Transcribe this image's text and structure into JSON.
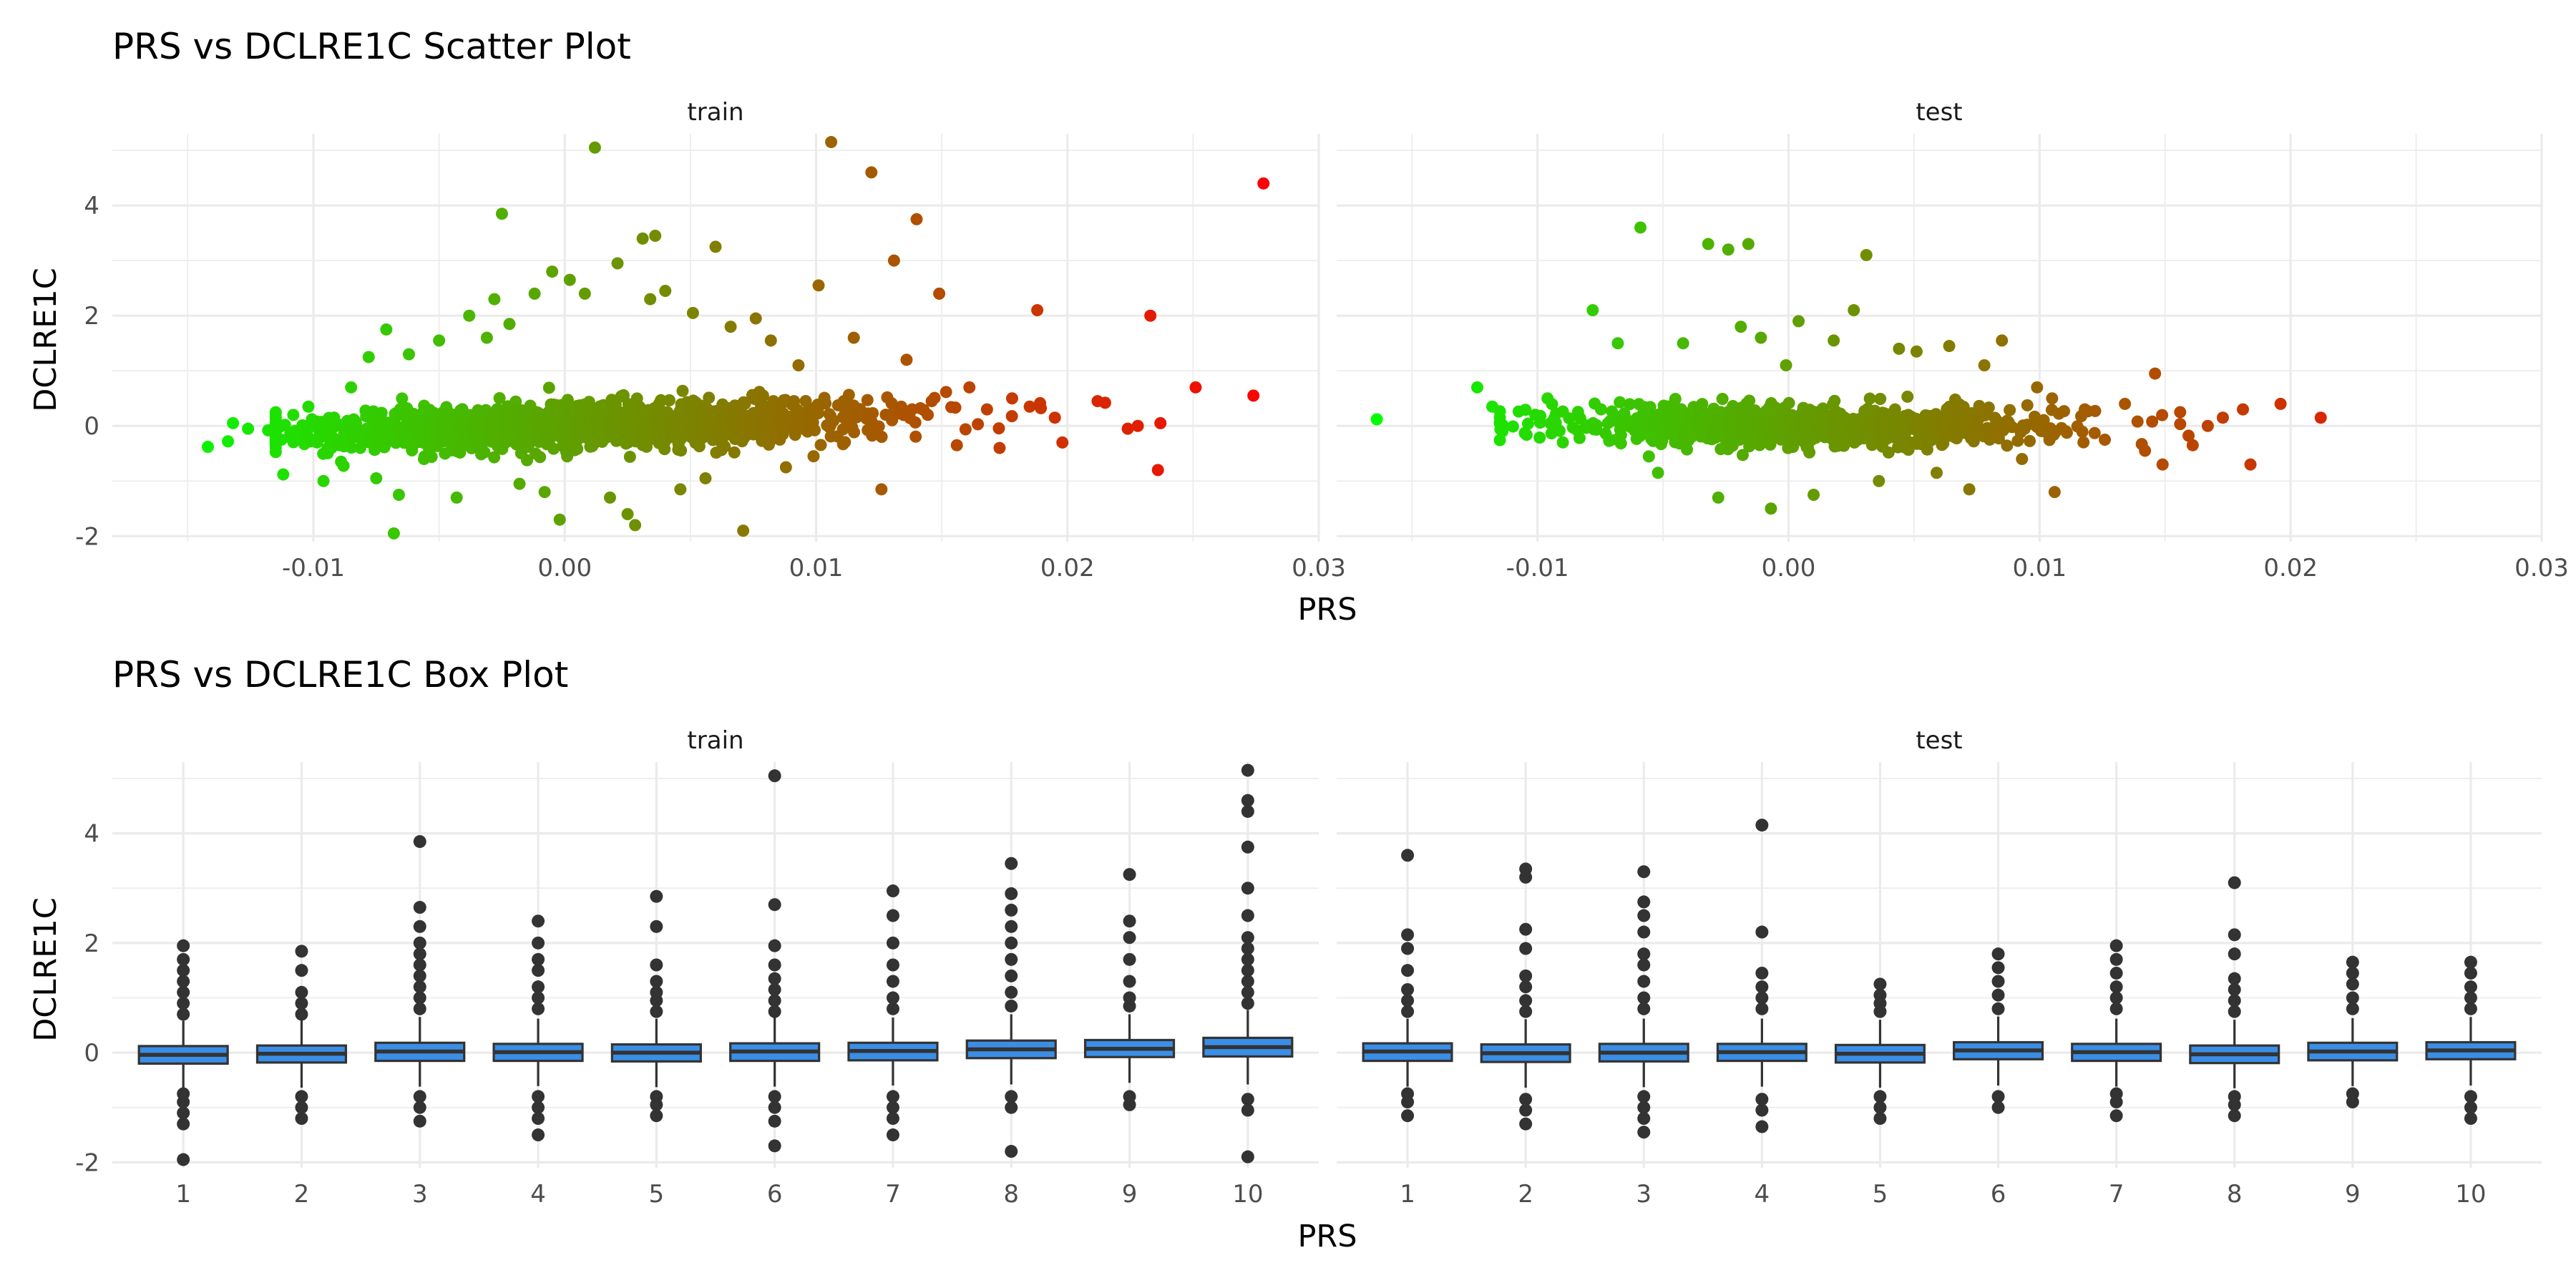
{
  "chart_data": [
    {
      "type": "scatter",
      "title": "PRS vs DCLRE1C Scatter Plot",
      "xlabel": "PRS",
      "ylabel": "DCLRE1C",
      "xlim": [
        -0.018,
        0.03
      ],
      "ylim": [
        -2.1,
        5.3
      ],
      "x_ticks": [
        -0.01,
        0.0,
        0.01,
        0.02,
        0.03
      ],
      "x_tick_labels": [
        "-0.01",
        "0.00",
        "0.01",
        "0.02",
        "0.03"
      ],
      "y_ticks": [
        -2,
        0,
        2,
        4
      ],
      "y_tick_labels": [
        "-2",
        "0",
        "2",
        "4"
      ],
      "grid": true,
      "color_scale": {
        "low": "#00ff00",
        "high": "#ff0000",
        "mapped_to": "PRS"
      },
      "facets": [
        {
          "label": "train",
          "points": [
            [
              -0.0142,
              -0.38
            ],
            [
              -0.0134,
              -0.28
            ],
            [
              -0.0132,
              0.05
            ],
            [
              -0.0126,
              -0.05
            ],
            [
              -0.0118,
              -0.08
            ],
            [
              -0.0112,
              -0.88
            ],
            [
              -0.0108,
              0.2
            ],
            [
              -0.0102,
              0.35
            ],
            [
              -0.0096,
              -1.0
            ],
            [
              -0.0089,
              -0.65
            ],
            [
              -0.0085,
              0.7
            ],
            [
              -0.0078,
              1.25
            ],
            [
              -0.0075,
              -0.95
            ],
            [
              -0.0071,
              1.75
            ],
            [
              -0.0068,
              -1.95
            ],
            [
              -0.0066,
              -1.25
            ],
            [
              -0.0062,
              1.3
            ],
            [
              -0.0056,
              -0.6
            ],
            [
              -0.005,
              1.55
            ],
            [
              -0.0043,
              -1.3
            ],
            [
              -0.0038,
              2.0
            ],
            [
              -0.0031,
              1.6
            ],
            [
              -0.0028,
              2.3
            ],
            [
              -0.0025,
              3.85
            ],
            [
              -0.0022,
              1.85
            ],
            [
              -0.0018,
              -1.05
            ],
            [
              -0.0012,
              2.4
            ],
            [
              -0.0008,
              -1.2
            ],
            [
              -0.0005,
              2.8
            ],
            [
              -0.0002,
              -1.7
            ],
            [
              0.0002,
              2.65
            ],
            [
              0.0008,
              2.4
            ],
            [
              0.0012,
              5.05
            ],
            [
              0.0018,
              -1.3
            ],
            [
              0.0021,
              2.95
            ],
            [
              0.0025,
              -1.6
            ],
            [
              0.0028,
              -1.8
            ],
            [
              0.0031,
              3.4
            ],
            [
              0.0034,
              2.3
            ],
            [
              0.0036,
              3.45
            ],
            [
              0.004,
              2.45
            ],
            [
              0.0046,
              -1.15
            ],
            [
              0.0051,
              2.05
            ],
            [
              0.0056,
              -0.95
            ],
            [
              0.006,
              3.25
            ],
            [
              0.0066,
              1.8
            ],
            [
              0.0071,
              -1.9
            ],
            [
              0.0076,
              1.95
            ],
            [
              0.0082,
              1.55
            ],
            [
              0.0088,
              -0.75
            ],
            [
              0.0093,
              1.1
            ],
            [
              0.0099,
              -0.55
            ],
            [
              0.0101,
              2.55
            ],
            [
              0.0106,
              5.15
            ],
            [
              0.0115,
              1.6
            ],
            [
              0.0122,
              4.6
            ],
            [
              0.0126,
              -1.15
            ],
            [
              0.0131,
              3.0
            ],
            [
              0.0136,
              1.2
            ],
            [
              0.014,
              3.75
            ],
            [
              0.0146,
              0.45
            ],
            [
              0.0149,
              2.4
            ],
            [
              0.0156,
              -0.35
            ],
            [
              0.0161,
              0.7
            ],
            [
              0.0168,
              0.3
            ],
            [
              0.0173,
              -0.4
            ],
            [
              0.0178,
              0.5
            ],
            [
              0.0185,
              0.35
            ],
            [
              0.0188,
              2.1
            ],
            [
              0.0195,
              0.15
            ],
            [
              0.0198,
              -0.3
            ],
            [
              0.0212,
              0.45
            ],
            [
              0.0215,
              0.42
            ],
            [
              0.0224,
              -0.05
            ],
            [
              0.0228,
              0.0
            ],
            [
              0.0233,
              2.0
            ],
            [
              0.0236,
              -0.8
            ],
            [
              0.0237,
              0.05
            ],
            [
              0.0251,
              0.7
            ],
            [
              0.0274,
              0.55
            ],
            [
              0.0278,
              4.4
            ]
          ]
        },
        {
          "label": "test",
          "points": [
            [
              -0.0164,
              0.12
            ],
            [
              -0.0124,
              0.7
            ],
            [
              -0.0118,
              0.35
            ],
            [
              -0.0114,
              -0.1
            ],
            [
              -0.0096,
              0.5
            ],
            [
              -0.0078,
              2.1
            ],
            [
              -0.0068,
              1.5
            ],
            [
              -0.0059,
              3.6
            ],
            [
              -0.0052,
              -0.85
            ],
            [
              -0.0042,
              1.5
            ],
            [
              -0.0032,
              3.3
            ],
            [
              -0.0028,
              -1.3
            ],
            [
              -0.0024,
              3.2
            ],
            [
              -0.0019,
              1.8
            ],
            [
              -0.0016,
              3.3
            ],
            [
              -0.0011,
              1.6
            ],
            [
              -0.0007,
              -1.5
            ],
            [
              -0.0001,
              1.1
            ],
            [
              0.0004,
              1.9
            ],
            [
              0.001,
              -1.25
            ],
            [
              0.0018,
              1.55
            ],
            [
              0.0026,
              2.1
            ],
            [
              0.0031,
              3.1
            ],
            [
              0.0036,
              -1.0
            ],
            [
              0.0044,
              1.4
            ],
            [
              0.0051,
              1.35
            ],
            [
              0.0059,
              -0.85
            ],
            [
              0.0064,
              1.45
            ],
            [
              0.0072,
              -1.15
            ],
            [
              0.0078,
              1.1
            ],
            [
              0.0085,
              1.55
            ],
            [
              0.0093,
              -0.6
            ],
            [
              0.0099,
              0.7
            ],
            [
              0.0105,
              0.5
            ],
            [
              0.0106,
              -1.2
            ],
            [
              0.0118,
              0.3
            ],
            [
              0.0126,
              -0.25
            ],
            [
              0.0134,
              0.4
            ],
            [
              0.0142,
              -0.45
            ],
            [
              0.0146,
              0.95
            ],
            [
              0.0149,
              -0.7
            ],
            [
              0.0156,
              0.25
            ],
            [
              0.0161,
              -0.35
            ],
            [
              0.0167,
              0.0
            ],
            [
              0.0173,
              0.15
            ],
            [
              0.0181,
              0.3
            ],
            [
              0.0184,
              -0.7
            ],
            [
              0.0196,
              0.4
            ],
            [
              0.0212,
              0.15
            ]
          ]
        }
      ]
    },
    {
      "type": "box",
      "title": "PRS vs DCLRE1C Box Plot",
      "xlabel": "PRS",
      "ylabel": "DCLRE1C",
      "categories": [
        "1",
        "2",
        "3",
        "4",
        "5",
        "6",
        "7",
        "8",
        "9",
        "10"
      ],
      "ylim": [
        -2.1,
        5.3
      ],
      "y_ticks": [
        -2,
        0,
        2,
        4
      ],
      "y_tick_labels": [
        "-2",
        "0",
        "2",
        "4"
      ],
      "box_color": "#3a8ee6",
      "grid": true,
      "facets": [
        {
          "label": "train",
          "boxes": [
            {
              "q1": -0.2,
              "median": -0.04,
              "q3": 0.12,
              "whisker_low": -0.66,
              "whisker_high": 0.58,
              "outliers": [
                -1.95,
                -1.3,
                -1.1,
                -0.9,
                -0.75,
                0.7,
                0.9,
                1.1,
                1.3,
                1.5,
                1.7,
                1.95
              ]
            },
            {
              "q1": -0.18,
              "median": -0.02,
              "q3": 0.13,
              "whisker_low": -0.64,
              "whisker_high": 0.59,
              "outliers": [
                -1.2,
                -1.0,
                -0.8,
                0.7,
                0.9,
                1.1,
                1.5,
                1.85
              ]
            },
            {
              "q1": -0.15,
              "median": 0.02,
              "q3": 0.18,
              "whisker_low": -0.62,
              "whisker_high": 0.65,
              "outliers": [
                -1.25,
                -1.0,
                -0.8,
                0.8,
                1.0,
                1.2,
                1.4,
                1.6,
                1.8,
                2.0,
                2.3,
                2.65,
                3.85
              ]
            },
            {
              "q1": -0.15,
              "median": 0.01,
              "q3": 0.16,
              "whisker_low": -0.61,
              "whisker_high": 0.62,
              "outliers": [
                -1.5,
                -1.2,
                -1.0,
                -0.8,
                0.8,
                1.0,
                1.2,
                1.5,
                1.7,
                2.0,
                2.4
              ]
            },
            {
              "q1": -0.16,
              "median": 0.0,
              "q3": 0.15,
              "whisker_low": -0.63,
              "whisker_high": 0.62,
              "outliers": [
                -1.15,
                -0.95,
                -0.8,
                0.75,
                0.95,
                1.1,
                1.3,
                1.6,
                2.3,
                2.85
              ]
            },
            {
              "q1": -0.15,
              "median": 0.02,
              "q3": 0.17,
              "whisker_low": -0.62,
              "whisker_high": 0.64,
              "outliers": [
                -1.7,
                -1.25,
                -1.0,
                -0.8,
                0.75,
                0.95,
                1.15,
                1.35,
                1.6,
                1.95,
                2.7,
                5.05
              ]
            },
            {
              "q1": -0.14,
              "median": 0.03,
              "q3": 0.18,
              "whisker_low": -0.6,
              "whisker_high": 0.64,
              "outliers": [
                -1.5,
                -1.2,
                -1.0,
                -0.8,
                0.8,
                1.0,
                1.3,
                1.6,
                2.0,
                2.5,
                2.95
              ]
            },
            {
              "q1": -0.1,
              "median": 0.06,
              "q3": 0.22,
              "whisker_low": -0.58,
              "whisker_high": 0.7,
              "outliers": [
                -1.8,
                -1.0,
                -0.8,
                0.85,
                1.1,
                1.4,
                1.7,
                2.0,
                2.3,
                2.6,
                2.9,
                3.45
              ]
            },
            {
              "q1": -0.08,
              "median": 0.07,
              "q3": 0.23,
              "whisker_low": -0.55,
              "whisker_high": 0.7,
              "outliers": [
                -0.95,
                -0.8,
                0.85,
                1.0,
                1.3,
                1.7,
                2.1,
                2.4,
                3.25
              ]
            },
            {
              "q1": -0.07,
              "median": 0.1,
              "q3": 0.27,
              "whisker_low": -0.58,
              "whisker_high": 0.78,
              "outliers": [
                -1.9,
                -1.05,
                -0.85,
                0.9,
                1.1,
                1.3,
                1.5,
                1.7,
                1.9,
                2.1,
                2.5,
                3.0,
                3.75,
                4.4,
                4.6,
                5.15
              ]
            }
          ]
        },
        {
          "label": "test",
          "boxes": [
            {
              "q1": -0.15,
              "median": 0.02,
              "q3": 0.17,
              "whisker_low": -0.62,
              "whisker_high": 0.62,
              "outliers": [
                -1.15,
                -0.9,
                -0.75,
                0.75,
                0.95,
                1.15,
                1.5,
                1.9,
                2.15,
                3.6
              ]
            },
            {
              "q1": -0.17,
              "median": -0.01,
              "q3": 0.15,
              "whisker_low": -0.64,
              "whisker_high": 0.61,
              "outliers": [
                -1.3,
                -1.05,
                -0.85,
                0.75,
                0.95,
                1.2,
                1.4,
                1.9,
                2.25,
                3.2,
                3.35
              ]
            },
            {
              "q1": -0.16,
              "median": 0.0,
              "q3": 0.16,
              "whisker_low": -0.63,
              "whisker_high": 0.62,
              "outliers": [
                -1.45,
                -1.2,
                -1.0,
                -0.8,
                0.8,
                1.0,
                1.3,
                1.6,
                1.8,
                2.2,
                2.5,
                2.75,
                3.3
              ]
            },
            {
              "q1": -0.15,
              "median": 0.01,
              "q3": 0.16,
              "whisker_low": -0.62,
              "whisker_high": 0.62,
              "outliers": [
                -1.35,
                -1.05,
                -0.85,
                0.8,
                1.0,
                1.2,
                1.45,
                2.2,
                4.15
              ]
            },
            {
              "q1": -0.18,
              "median": -0.02,
              "q3": 0.14,
              "whisker_low": -0.64,
              "whisker_high": 0.6,
              "outliers": [
                -1.2,
                -1.0,
                -0.8,
                0.75,
                0.9,
                1.05,
                1.25
              ]
            },
            {
              "q1": -0.12,
              "median": 0.04,
              "q3": 0.19,
              "whisker_low": -0.6,
              "whisker_high": 0.66,
              "outliers": [
                -1.0,
                -0.8,
                0.8,
                1.05,
                1.3,
                1.55,
                1.8
              ]
            },
            {
              "q1": -0.15,
              "median": 0.01,
              "q3": 0.16,
              "whisker_low": -0.62,
              "whisker_high": 0.62,
              "outliers": [
                -1.15,
                -0.9,
                -0.75,
                0.8,
                1.0,
                1.2,
                1.45,
                1.7,
                1.95
              ]
            },
            {
              "q1": -0.19,
              "median": -0.03,
              "q3": 0.13,
              "whisker_low": -0.65,
              "whisker_high": 0.6,
              "outliers": [
                -1.15,
                -0.95,
                -0.8,
                0.75,
                0.95,
                1.15,
                1.35,
                1.8,
                2.15,
                3.1
              ]
            },
            {
              "q1": -0.14,
              "median": 0.02,
              "q3": 0.18,
              "whisker_low": -0.61,
              "whisker_high": 0.63,
              "outliers": [
                -0.9,
                -0.75,
                0.8,
                1.0,
                1.25,
                1.45,
                1.65
              ]
            },
            {
              "q1": -0.12,
              "median": 0.04,
              "q3": 0.19,
              "whisker_low": -0.6,
              "whisker_high": 0.65,
              "outliers": [
                -1.2,
                -1.0,
                -0.8,
                0.8,
                1.0,
                1.2,
                1.45,
                1.65
              ]
            }
          ]
        }
      ]
    }
  ]
}
